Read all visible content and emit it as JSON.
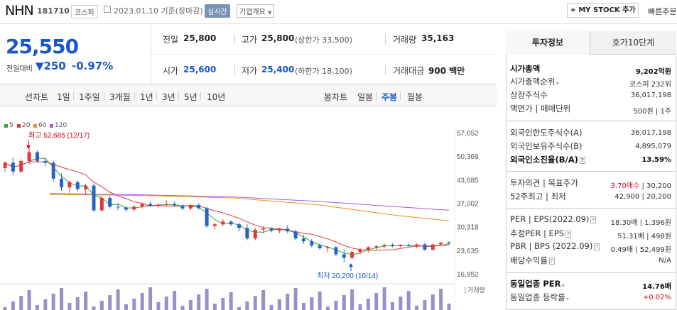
{
  "header": {
    "name": "NHN",
    "code": "181710",
    "market": "코스피",
    "date": "2023.01.10 기준(장마감)",
    "realtime": "실시간",
    "overview": "기업개요",
    "mystock": "+ MY STOCK 추가",
    "quick": "빠른주문"
  },
  "price": {
    "now": "25,550",
    "vs_label": "전일대비",
    "change": "▼250",
    "change_pct": "-0.97%"
  },
  "quote": {
    "prev_label": "전일",
    "prev": "25,800",
    "high_label": "고가",
    "high": "25,800",
    "upper": "(상한가 33,500)",
    "vol_label": "거래량",
    "vol": "35,163",
    "open_label": "시가",
    "open": "25,600",
    "low_label": "저가",
    "low": "25,400",
    "lower": "(하한가 18,100)",
    "amt_label": "거래대금",
    "amt": "900 백만"
  },
  "periods": {
    "line_label": "선차트",
    "items": [
      "1일",
      "1주일",
      "3개월",
      "1년",
      "3년",
      "5년",
      "10년"
    ],
    "candle_label": "봉차트",
    "candles": [
      "일봉",
      "주봉",
      "월봉"
    ],
    "selected_candle": "주봉"
  },
  "chart_data": {
    "type": "candlestick",
    "legend": [
      {
        "name": "5",
        "color": "#2ea82e"
      },
      {
        "name": "20",
        "color": "#e0383f"
      },
      {
        "name": "60",
        "color": "#f08a1a"
      },
      {
        "name": "120",
        "color": "#a25ed6"
      }
    ],
    "y_ticks": [
      "57,052",
      "50,369",
      "43,685",
      "37,002",
      "30,318",
      "23,635",
      "16,952"
    ],
    "ylim": [
      16952,
      57052
    ],
    "high_label": "최고 52,685 (12/17)",
    "low_label": "최저 20,200 (10/14)",
    "volume_label": "거래량",
    "candles": [
      [
        47000,
        49000,
        46000,
        48500
      ],
      [
        48500,
        50000,
        45000,
        46000
      ],
      [
        46000,
        49500,
        45500,
        49000
      ],
      [
        49000,
        52685,
        48000,
        51500
      ],
      [
        51500,
        52000,
        48500,
        49000
      ],
      [
        49000,
        50000,
        47500,
        48500
      ],
      [
        48500,
        49000,
        43000,
        44000
      ],
      [
        44000,
        45500,
        40500,
        41500
      ],
      [
        41500,
        43500,
        40000,
        43000
      ],
      [
        43000,
        43500,
        40500,
        41000
      ],
      [
        41000,
        42500,
        39500,
        42000
      ],
      [
        42000,
        42500,
        34500,
        35000
      ],
      [
        35000,
        39000,
        34500,
        38500
      ],
      [
        38500,
        39000,
        35500,
        36000
      ],
      [
        36000,
        37000,
        35000,
        35800
      ],
      [
        35800,
        36200,
        34500,
        35200
      ],
      [
        35200,
        36500,
        34800,
        36000
      ],
      [
        36000,
        37200,
        35500,
        36800
      ],
      [
        36800,
        37500,
        36000,
        36200
      ],
      [
        36200,
        37000,
        35800,
        36600
      ],
      [
        36600,
        37800,
        36200,
        36800
      ],
      [
        36800,
        37500,
        36000,
        36400
      ],
      [
        36400,
        36800,
        35000,
        35500
      ],
      [
        35500,
        36800,
        35000,
        36500
      ],
      [
        36500,
        37000,
        35200,
        35600
      ],
      [
        35600,
        36000,
        30000,
        30500
      ],
      [
        30500,
        31500,
        29500,
        31000
      ],
      [
        31000,
        32500,
        30500,
        31800
      ],
      [
        31800,
        32200,
        30500,
        31000
      ],
      [
        31000,
        31500,
        29000,
        30000
      ],
      [
        30000,
        31000,
        26500,
        27000
      ],
      [
        27000,
        30000,
        26500,
        29500
      ],
      [
        29500,
        30500,
        28500,
        29800
      ],
      [
        29800,
        30200,
        28800,
        29200
      ],
      [
        29200,
        30000,
        28500,
        29800
      ],
      [
        29800,
        30800,
        28500,
        29000
      ],
      [
        29000,
        29500,
        26500,
        27000
      ],
      [
        27000,
        28000,
        25500,
        26200
      ],
      [
        26200,
        26800,
        24500,
        25000
      ],
      [
        25000,
        25800,
        23800,
        24200
      ],
      [
        24200,
        25000,
        23000,
        24500
      ],
      [
        24500,
        24800,
        22000,
        22500
      ],
      [
        22500,
        23800,
        20200,
        21500
      ],
      [
        21500,
        23500,
        21000,
        23200
      ],
      [
        23200,
        24200,
        22500,
        23800
      ],
      [
        23800,
        24800,
        23000,
        24500
      ],
      [
        24500,
        25200,
        23800,
        24800
      ],
      [
        24800,
        25500,
        24200,
        25200
      ],
      [
        25200,
        25600,
        24500,
        24800
      ],
      [
        24800,
        25400,
        24400,
        25200
      ],
      [
        25200,
        25700,
        24600,
        24900
      ],
      [
        24900,
        25600,
        24300,
        25300
      ],
      [
        25300,
        25800,
        23500,
        23800
      ],
      [
        23800,
        25500,
        23600,
        25300
      ],
      [
        25300,
        26000,
        24800,
        25800
      ],
      [
        25800,
        26200,
        25200,
        25550
      ]
    ]
  },
  "tabs": {
    "info": "투자정보",
    "hoga": "호가10단계"
  },
  "invest": {
    "mcap_label": "시가총액",
    "mcap": "9,202억원",
    "mcap_rank_label": "시가총액순위",
    "mcap_rank": "코스피 232위",
    "shares_label": "상장주식수",
    "shares": "36,017,198",
    "par_label": "액면가",
    "unit_label": "매매단위",
    "par": "500원",
    "unit": "1주",
    "f_limit_label": "외국인한도주식수(A)",
    "f_limit": "36,017,198",
    "f_hold_label": "외국인보유주식수(B)",
    "f_hold": "4,895,079",
    "f_ratio_label": "외국인소진율(B/A)",
    "f_ratio": "13.59%",
    "opinion_label": "투자의견",
    "target_label": "목표주가",
    "opinion": "3.70매수",
    "target": "30,200",
    "w52_label": "52주최고",
    "w52_low_label": "최저",
    "w52_high": "42,900",
    "w52_low": "20,200",
    "per_label": "PER",
    "eps_label": "EPS(2022.09)",
    "per": "18.30배",
    "eps": "1,396원",
    "eper_label": "추정PER",
    "eeps_label": "EPS",
    "eper": "51.31배",
    "eeps": "498원",
    "pbr_label": "PBR",
    "bps_label": "BPS (2022.09)",
    "pbr": "0.49배",
    "bps": "52,499원",
    "div_label": "배당수익률",
    "div": "N/A",
    "sector_per_label": "동일업종 PER",
    "sector_per": "14.76배",
    "sector_rate_label": "동일업종 등락률",
    "sector_rate": "+0.02%"
  }
}
